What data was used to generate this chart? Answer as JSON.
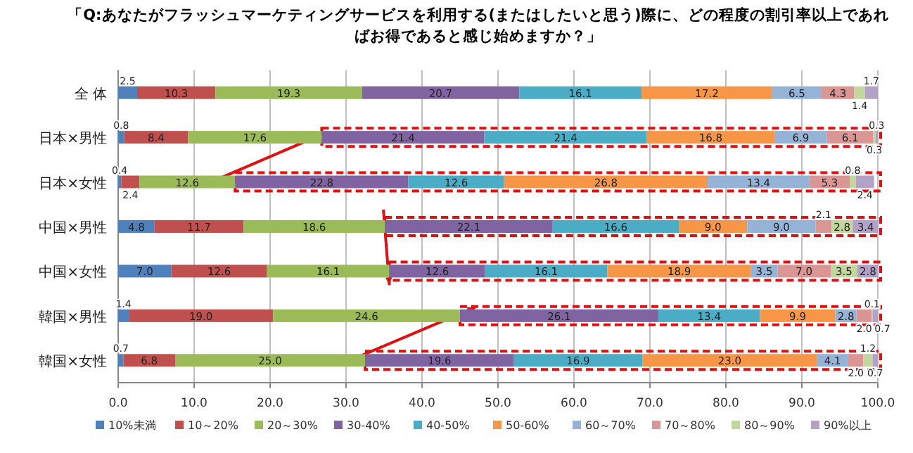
{
  "chart_data": {
    "type": "bar",
    "orientation": "horizontal",
    "stacked": true,
    "grid": "x",
    "legend": "bottom",
    "title": "「Q:あなたがフラッシュマーケティングサービスを利用する(またはしたいと思う)際に、どの程度の割引率以上であればお得であると感じ始めますか？」",
    "categories": [
      "全 体",
      "日本×男性",
      "日本×女性",
      "中国×男性",
      "中国×女性",
      "韓国×男性",
      "韓国×女性"
    ],
    "xlim": [
      0,
      100
    ],
    "xticks": [
      {
        "value": 0,
        "label": "0.0"
      },
      {
        "value": 10,
        "label": "10.0"
      },
      {
        "value": 20,
        "label": "20.0"
      },
      {
        "value": 30,
        "label": "30.0"
      },
      {
        "value": 40,
        "label": "40.0"
      },
      {
        "value": 50,
        "label": "50.0"
      },
      {
        "value": 60,
        "label": "60.0"
      },
      {
        "value": 70,
        "label": "70.0"
      },
      {
        "value": 80,
        "label": "80.0"
      },
      {
        "value": 90,
        "label": "90.0"
      },
      {
        "value": 100,
        "label": "100.0"
      }
    ],
    "series": [
      {
        "name": "10%未満",
        "color": "#4f81bd",
        "values": [
          2.5,
          0.8,
          0.4,
          4.8,
          7.0,
          1.4,
          0.7
        ],
        "value_labels": [
          "2.5",
          "0.8",
          "0.4",
          "4.8",
          "7.0",
          "1.4",
          "0.7"
        ]
      },
      {
        "name": "10～20%",
        "color": "#c0504d",
        "values": [
          10.3,
          8.4,
          2.4,
          11.7,
          12.6,
          19.0,
          6.8
        ],
        "value_labels": [
          "10.3",
          "8.4",
          "2.4",
          "11.7",
          "12.6",
          "19.0",
          "6.8"
        ]
      },
      {
        "name": "20～30%",
        "color": "#9bbb59",
        "values": [
          19.3,
          17.6,
          12.6,
          18.6,
          16.1,
          24.6,
          25.0
        ],
        "value_labels": [
          "19.3",
          "17.6",
          "12.6",
          "18.6",
          "16.1",
          "24.6",
          "25.0"
        ]
      },
      {
        "name": "30-40%",
        "color": "#8064a2",
        "values": [
          20.7,
          21.4,
          22.8,
          22.1,
          12.6,
          26.1,
          19.6
        ],
        "value_labels": [
          "20.7",
          "21.4",
          "22.8",
          "22.1",
          "12.6",
          "26.1",
          "19.6"
        ]
      },
      {
        "name": "40-50%",
        "color": "#4bacc6",
        "values": [
          16.1,
          21.4,
          12.6,
          16.6,
          16.1,
          13.4,
          16.9
        ],
        "value_labels": [
          "16.1",
          "21.4",
          "12.6",
          "16.6",
          "16.1",
          "13.4",
          "16.9"
        ]
      },
      {
        "name": "50-60%",
        "color": "#f79646",
        "values": [
          17.2,
          16.8,
          26.8,
          9.0,
          18.9,
          9.9,
          23.0
        ],
        "value_labels": [
          "17.2",
          "16.8",
          "26.8",
          "9.0",
          "18.9",
          "9.9",
          "23.0"
        ]
      },
      {
        "name": "60～70%",
        "color": "#95b3d7",
        "values": [
          6.5,
          6.9,
          13.4,
          9.0,
          3.5,
          2.8,
          4.1
        ],
        "value_labels": [
          "6.5",
          "6.9",
          "13.4",
          "9.0",
          "3.5",
          "2.8",
          "4.1"
        ]
      },
      {
        "name": "70～80%",
        "color": "#d99694",
        "values": [
          4.3,
          6.1,
          5.3,
          2.1,
          7.0,
          2.0,
          2.0
        ],
        "value_labels": [
          "4.3",
          "6.1",
          "5.3",
          "2.1",
          "7.0",
          "2.0",
          "2.0"
        ]
      },
      {
        "name": "80～90%",
        "color": "#c3d69b",
        "values": [
          1.4,
          0.3,
          0.8,
          2.8,
          3.5,
          0.1,
          1.2
        ],
        "value_labels": [
          "1.4",
          "0.3",
          "0.8",
          "2.8",
          "3.5",
          "0.1",
          "1.2"
        ]
      },
      {
        "name": "90%以上",
        "color": "#b3a2c7",
        "values": [
          1.7,
          0.3,
          2.4,
          3.4,
          2.8,
          0.7,
          0.7
        ],
        "value_labels": [
          "1.7",
          "0.3",
          "2.4",
          "3.4",
          "2.8",
          "0.7",
          "0.7"
        ]
      }
    ]
  }
}
